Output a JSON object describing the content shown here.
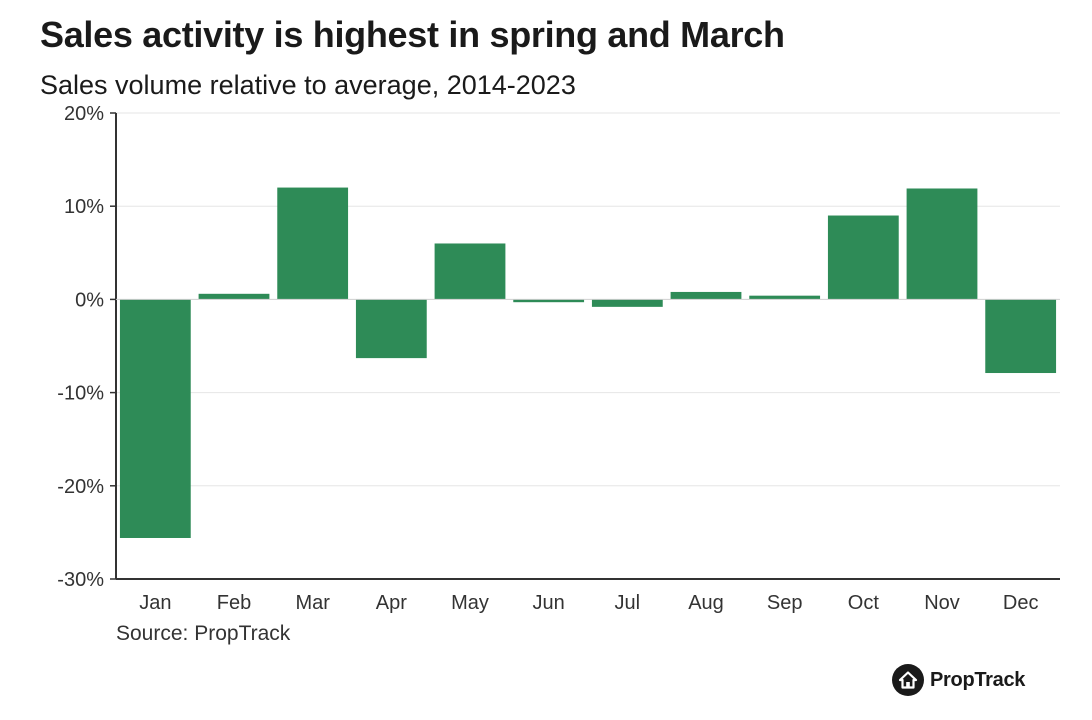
{
  "title": "Sales activity is highest in spring and March",
  "subtitle": "Sales volume relative to average, 2014-2023",
  "source": "Source: PropTrack",
  "brand": "PropTrack",
  "colors": {
    "bar": "#2e8b57",
    "grid": "#e6e6e6",
    "axis": "#333333"
  },
  "chart_data": {
    "type": "bar",
    "title": "Sales activity is highest in spring and March",
    "subtitle": "Sales volume relative to average, 2014-2023",
    "categories": [
      "Jan",
      "Feb",
      "Mar",
      "Apr",
      "May",
      "Jun",
      "Jul",
      "Aug",
      "Sep",
      "Oct",
      "Nov",
      "Dec"
    ],
    "values": [
      -25.6,
      0.6,
      12.0,
      -6.3,
      6.0,
      -0.3,
      -0.8,
      0.8,
      0.4,
      9.0,
      11.9,
      -7.9
    ],
    "unit": "%",
    "xlabel": "",
    "ylabel": "",
    "ylim": [
      -30,
      20
    ],
    "yticks": [
      20,
      10,
      0,
      -10,
      -20,
      -30
    ],
    "ytick_labels": [
      "20%",
      "10%",
      "0%",
      "-10%",
      "-20%",
      "-30%"
    ],
    "grid": true,
    "legend": "none"
  }
}
